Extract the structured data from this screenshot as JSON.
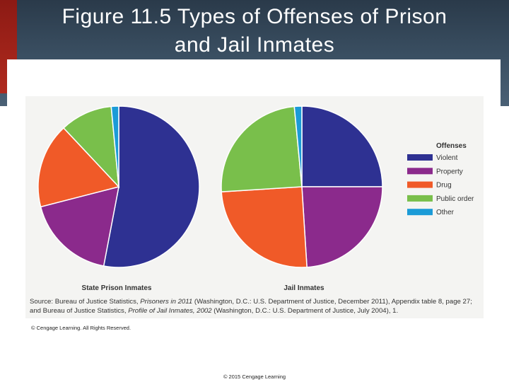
{
  "slide": {
    "title_line1": "Figure 11.5  Types of Offenses of Prison",
    "title_line2": "and Jail Inmates",
    "copyright": "© Cengage Learning. All Rights Reserved.",
    "footer": "© 2015 Cengage Learning"
  },
  "source_note": {
    "part1": "Source: Bureau of Justice Statistics, ",
    "part2_italic": "Prisoners in 2011",
    "part3": " (Washington, D.C.: U.S. Department of Justice, December 2011), Appendix table 8, page 27; and Bureau of Justice Statistics, ",
    "part4_italic": "Profile of Jail Inmates, 2002",
    "part5": " (Washington, D.C.: U.S. Department of Justice, July 2004), 1."
  },
  "chart_data": {
    "type": "pie",
    "legend_title": "Offenses",
    "legend_placement": "right",
    "categories": [
      "Violent",
      "Property",
      "Drug",
      "Public order",
      "Other"
    ],
    "colors": [
      "#2e3192",
      "#8b2a8c",
      "#f05a28",
      "#79bf4b",
      "#1b9bd7"
    ],
    "series": [
      {
        "name": "State Prison Inmates",
        "values": [
          53,
          18,
          17,
          10.5,
          1.5
        ]
      },
      {
        "name": "Jail Inmates",
        "values": [
          25,
          24,
          25,
          24.5,
          1.5
        ]
      }
    ]
  }
}
